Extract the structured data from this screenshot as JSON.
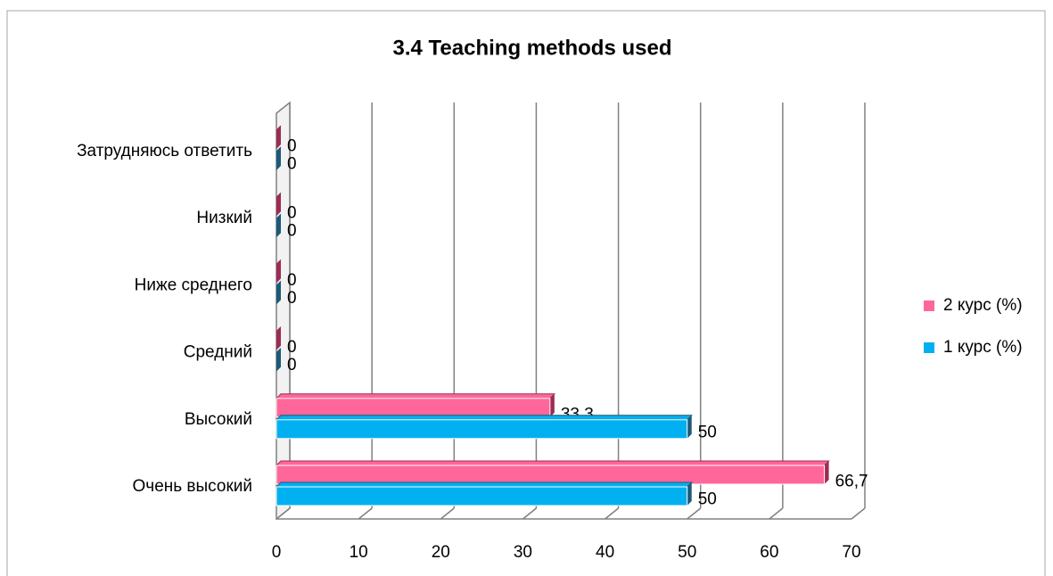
{
  "chart_data": {
    "type": "bar",
    "orientation": "horizontal",
    "title": "3.4 Teaching methods used",
    "categories": [
      "Очень высокий",
      "Высокий",
      "Средний",
      "Ниже среднего",
      "Низкий",
      "Затрудняюсь ответить"
    ],
    "series": [
      {
        "name": "2 курс (%)",
        "color": "#ff6699",
        "values": [
          66.7,
          33.3,
          0,
          0,
          0,
          0
        ],
        "value_labels": [
          "66,7",
          "33,3",
          "0",
          "0",
          "0",
          "0"
        ]
      },
      {
        "name": "1 курс (%)",
        "color": "#00b0f0",
        "values": [
          50,
          50,
          0,
          0,
          0,
          0
        ],
        "value_labels": [
          "50",
          "50",
          "0",
          "0",
          "0",
          "0"
        ]
      }
    ],
    "xlim": [
      0,
      70
    ],
    "xticks": [
      0,
      10,
      20,
      30,
      40,
      50,
      60,
      70
    ],
    "grid": true,
    "legend": "right"
  }
}
